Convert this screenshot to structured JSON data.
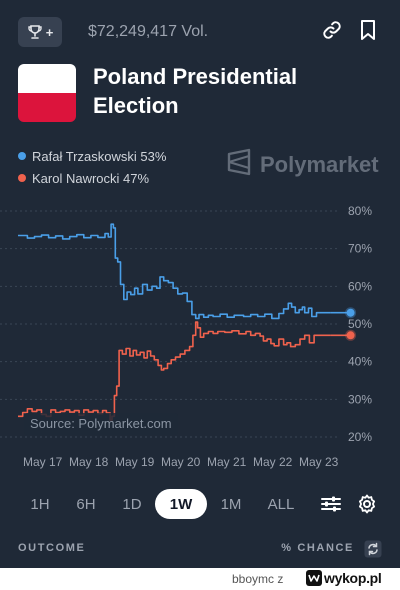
{
  "header": {
    "volume": "$72,249,417 Vol.",
    "title_line1": "Poland Presidential",
    "title_line2": "Election",
    "trophy_plus": "+"
  },
  "brand": {
    "name": "Polymarket",
    "source": "Source: Polymarket.com"
  },
  "legend": [
    {
      "label": "Rafał Trzaskowski 53%",
      "color": "#4a9fe8"
    },
    {
      "label": "Karol Nawrocki 47%",
      "color": "#f0624d"
    }
  ],
  "colors": {
    "background": "#1f2937",
    "series_blue": "#4a9fe8",
    "series_red": "#f0624d",
    "flag_red": "#dc143c"
  },
  "range_tabs": [
    {
      "label": "1H",
      "active": false
    },
    {
      "label": "6H",
      "active": false
    },
    {
      "label": "1D",
      "active": false
    },
    {
      "label": "1W",
      "active": true
    },
    {
      "label": "1M",
      "active": false
    },
    {
      "label": "ALL",
      "active": false
    }
  ],
  "outcome_header": {
    "outcome": "OUTCOME",
    "chance": "% CHANCE"
  },
  "footer": {
    "user": "bboymc  z",
    "site": "wykop.pl"
  },
  "chart_data": {
    "type": "line",
    "ylim": [
      20,
      80
    ],
    "y_ticks": [
      "80%",
      "70%",
      "60%",
      "50%",
      "40%",
      "30%",
      "20%"
    ],
    "y_tick_values": [
      80,
      70,
      60,
      50,
      40,
      30,
      20
    ],
    "x_ticks": [
      "May 17",
      "May 18",
      "May 19",
      "May 20",
      "May 21",
      "May 22",
      "May 23"
    ],
    "x_range": [
      16.9,
      23.75
    ],
    "grid": true,
    "series": [
      {
        "name": "Rafał Trzaskowski",
        "color": "#4a9fe8",
        "end_value": 53,
        "points": [
          [
            16.9,
            73.5
          ],
          [
            17.0,
            73.5
          ],
          [
            17.1,
            72.8
          ],
          [
            17.25,
            73.2
          ],
          [
            17.4,
            73.6
          ],
          [
            17.55,
            72.9
          ],
          [
            17.7,
            73.4
          ],
          [
            17.85,
            72.6
          ],
          [
            18.0,
            73.2
          ],
          [
            18.15,
            73.7
          ],
          [
            18.3,
            72.9
          ],
          [
            18.45,
            73.5
          ],
          [
            18.6,
            73.0
          ],
          [
            18.75,
            74.0
          ],
          [
            18.82,
            73.1
          ],
          [
            18.88,
            76.5
          ],
          [
            18.93,
            75.5
          ],
          [
            18.97,
            67.5
          ],
          [
            19.02,
            66.5
          ],
          [
            19.08,
            60.5
          ],
          [
            19.15,
            56.5
          ],
          [
            19.22,
            58.5
          ],
          [
            19.3,
            57.8
          ],
          [
            19.38,
            59.5
          ],
          [
            19.45,
            58.0
          ],
          [
            19.55,
            60.5
          ],
          [
            19.65,
            59.0
          ],
          [
            19.75,
            60.0
          ],
          [
            19.85,
            59.5
          ],
          [
            19.92,
            62.5
          ],
          [
            20.0,
            61.5
          ],
          [
            20.1,
            61.0
          ],
          [
            20.2,
            59.5
          ],
          [
            20.3,
            58.0
          ],
          [
            20.4,
            58.2
          ],
          [
            20.5,
            56.0
          ],
          [
            20.6,
            52.5
          ],
          [
            20.68,
            51.5
          ],
          [
            20.75,
            52.5
          ],
          [
            20.85,
            51.8
          ],
          [
            20.95,
            52.3
          ],
          [
            21.05,
            52.0
          ],
          [
            21.2,
            52.6
          ],
          [
            21.35,
            51.8
          ],
          [
            21.5,
            52.3
          ],
          [
            21.7,
            52.0
          ],
          [
            21.85,
            52.5
          ],
          [
            22.0,
            52.0
          ],
          [
            22.15,
            52.6
          ],
          [
            22.3,
            51.5
          ],
          [
            22.45,
            52.8
          ],
          [
            22.55,
            54.0
          ],
          [
            22.65,
            55.5
          ],
          [
            22.72,
            54.5
          ],
          [
            22.8,
            53.0
          ],
          [
            22.88,
            53.8
          ],
          [
            22.95,
            54.5
          ],
          [
            23.0,
            53.0
          ],
          [
            23.08,
            54.2
          ],
          [
            23.15,
            52.0
          ],
          [
            23.25,
            53.0
          ],
          [
            23.4,
            53.0
          ],
          [
            23.55,
            53.0
          ]
        ]
      },
      {
        "name": "Karol Nawrocki",
        "color": "#f0624d",
        "end_value": 47,
        "points": [
          [
            16.9,
            25.5
          ],
          [
            17.0,
            26.5
          ],
          [
            17.1,
            27.5
          ],
          [
            17.2,
            26.8
          ],
          [
            17.3,
            27.2
          ],
          [
            17.4,
            26.0
          ],
          [
            17.5,
            25.5
          ],
          [
            17.6,
            27.2
          ],
          [
            17.7,
            26.5
          ],
          [
            17.8,
            26.8
          ],
          [
            17.9,
            27.2
          ],
          [
            18.0,
            26.6
          ],
          [
            18.1,
            27.0
          ],
          [
            18.2,
            25.8
          ],
          [
            18.3,
            27.2
          ],
          [
            18.4,
            26.6
          ],
          [
            18.5,
            27.0
          ],
          [
            18.6,
            26.2
          ],
          [
            18.7,
            27.0
          ],
          [
            18.78,
            26.4
          ],
          [
            18.86,
            24.5
          ],
          [
            18.9,
            25.5
          ],
          [
            18.95,
            31.0
          ],
          [
            19.0,
            33.5
          ],
          [
            19.05,
            43.0
          ],
          [
            19.12,
            42.0
          ],
          [
            19.2,
            43.5
          ],
          [
            19.28,
            41.5
          ],
          [
            19.35,
            43.0
          ],
          [
            19.42,
            41.8
          ],
          [
            19.5,
            42.5
          ],
          [
            19.58,
            41.0
          ],
          [
            19.65,
            42.8
          ],
          [
            19.72,
            41.5
          ],
          [
            19.8,
            40.5
          ],
          [
            19.88,
            39.0
          ],
          [
            19.95,
            37.8
          ],
          [
            20.0,
            38.2
          ],
          [
            20.08,
            39.5
          ],
          [
            20.16,
            40.5
          ],
          [
            20.25,
            41.2
          ],
          [
            20.35,
            42.0
          ],
          [
            20.45,
            43.0
          ],
          [
            20.55,
            44.0
          ],
          [
            20.62,
            47.0
          ],
          [
            20.68,
            50.5
          ],
          [
            20.72,
            49.0
          ],
          [
            20.78,
            46.5
          ],
          [
            20.85,
            47.5
          ],
          [
            20.95,
            48.0
          ],
          [
            21.05,
            47.5
          ],
          [
            21.15,
            48.0
          ],
          [
            21.3,
            47.8
          ],
          [
            21.45,
            48.2
          ],
          [
            21.6,
            47.4
          ],
          [
            21.75,
            48.0
          ],
          [
            21.85,
            47.0
          ],
          [
            21.95,
            47.5
          ],
          [
            22.05,
            46.8
          ],
          [
            22.12,
            45.5
          ],
          [
            22.2,
            46.0
          ],
          [
            22.28,
            44.8
          ],
          [
            22.35,
            44.2
          ],
          [
            22.45,
            46.0
          ],
          [
            22.55,
            44.5
          ],
          [
            22.62,
            45.0
          ],
          [
            22.7,
            44.0
          ],
          [
            22.8,
            44.5
          ],
          [
            22.9,
            46.0
          ],
          [
            23.0,
            47.0
          ],
          [
            23.1,
            45.0
          ],
          [
            23.2,
            47.0
          ],
          [
            23.35,
            47.0
          ],
          [
            23.55,
            47.0
          ]
        ]
      }
    ]
  }
}
